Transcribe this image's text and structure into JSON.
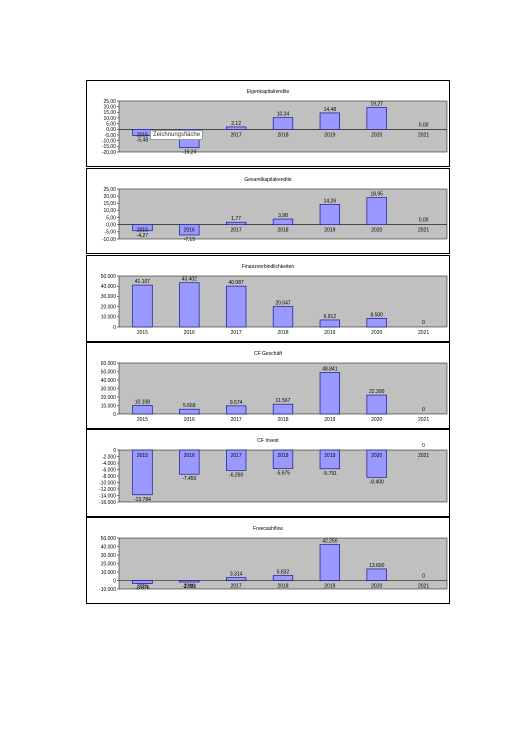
{
  "tooltip": {
    "text": "Zeichnungsfläche"
  },
  "colors": {
    "plot_bg": "#c0c0c0",
    "bar_fill": "#9999ff",
    "bar_stroke": "#000080"
  },
  "chart_data": [
    {
      "type": "bar",
      "title": "Eigenkapitalrendite",
      "categories": [
        "2015",
        "2016",
        "2017",
        "2018",
        "2019",
        "2020",
        "2021"
      ],
      "values": [
        -5.48,
        -16.24,
        2.12,
        10.34,
        14.48,
        19.27,
        0.0
      ],
      "value_labels": [
        "-5,48",
        "-16,24",
        "2,12",
        "10,34",
        "14,48",
        "19,27",
        "0,00"
      ],
      "ylim": [
        -20,
        25
      ],
      "yticks": [
        25,
        20,
        15,
        10,
        5,
        0,
        -5,
        -10,
        -15,
        -20
      ],
      "ytick_labels": [
        "25,00",
        "20,00",
        "15,00",
        "10,00",
        "5,00",
        "0,00",
        "-5,00",
        "-10,00",
        "-15,00",
        "-20,00"
      ],
      "grid": false
    },
    {
      "type": "bar",
      "title": "Gesamtkapitalrendite",
      "categories": [
        "2015",
        "2016",
        "2017",
        "2018",
        "2019",
        "2020",
        "2021"
      ],
      "values": [
        -4.27,
        -7.19,
        1.77,
        3.98,
        14.26,
        18.95,
        0.0
      ],
      "value_labels": [
        "-4,27",
        "-7,19",
        "1,77",
        "3,98",
        "14,26",
        "18,95",
        "0,00"
      ],
      "ylim": [
        -10,
        25
      ],
      "yticks": [
        25,
        20,
        15,
        10,
        5,
        0,
        -5,
        -10
      ],
      "ytick_labels": [
        "25,00",
        "20,00",
        "15,00",
        "10,00",
        "5,00",
        "0,00",
        "-5,00",
        "-10,00"
      ],
      "grid": false
    },
    {
      "type": "bar",
      "title": "Finanzverbindlichkeiten",
      "categories": [
        "2015",
        "2016",
        "2017",
        "2018",
        "2019",
        "2020",
        "2021"
      ],
      "values": [
        41107,
        43402,
        40087,
        20047,
        6912,
        8500,
        0
      ],
      "value_labels": [
        "41.107",
        "43.402",
        "40.087",
        "20.047",
        "6.912",
        "8.500",
        "0"
      ],
      "ylim": [
        0,
        50000
      ],
      "yticks": [
        50000,
        40000,
        30000,
        20000,
        10000,
        0
      ],
      "ytick_labels": [
        "50.000",
        "40.000",
        "30.000",
        "20.000",
        "10.000",
        "0"
      ],
      "grid": false
    },
    {
      "type": "bar",
      "title": "CF Geschäft",
      "categories": [
        "2015",
        "2016",
        "2017",
        "2018",
        "2019",
        "2020",
        "2021"
      ],
      "values": [
        10108,
        5669,
        9574,
        11567,
        48841,
        22300,
        0
      ],
      "value_labels": [
        "10.108",
        "5.669",
        "9.574",
        "11.567",
        "48.841",
        "22.300",
        "0"
      ],
      "ylim": [
        0,
        60000
      ],
      "yticks": [
        60000,
        50000,
        40000,
        30000,
        20000,
        10000,
        0
      ],
      "ytick_labels": [
        "60.000",
        "50.000",
        "40.000",
        "30.000",
        "20.000",
        "10.000",
        "0"
      ],
      "grid": false
    },
    {
      "type": "bar",
      "title": "CF Invest",
      "categories": [
        "2015",
        "2016",
        "2017",
        "2018",
        "2019",
        "2020",
        "2021"
      ],
      "values": [
        -13784,
        -7450,
        -6260,
        -5675,
        -5791,
        -8400,
        0
      ],
      "value_labels": [
        "-13.784",
        "-7.450",
        "-6.260",
        "-5.675",
        "-5.791",
        "-8.400",
        "0"
      ],
      "ylim": [
        -16000,
        0
      ],
      "yticks": [
        0,
        -2000,
        -4000,
        -6000,
        -8000,
        -10000,
        -12000,
        -14000,
        -16000
      ],
      "ytick_labels": [
        "0",
        "-2.000",
        "-4.000",
        "-6.000",
        "-8.000",
        "-10.000",
        "-12.000",
        "-14.000",
        "-16.000"
      ],
      "grid": false
    },
    {
      "type": "bar",
      "title": "Freecashflow",
      "categories": [
        "2015",
        "2016",
        "2017",
        "2018",
        "2019",
        "2020",
        "2021"
      ],
      "values": [
        -3676,
        -1781,
        3314,
        5832,
        42250,
        13600,
        0
      ],
      "value_labels": [
        "-3.676",
        "-1.781",
        "3.314",
        "5.832",
        "42.250",
        "13.600",
        "0"
      ],
      "ylim": [
        -10000,
        50000
      ],
      "yticks": [
        50000,
        40000,
        30000,
        20000,
        10000,
        0,
        -10000
      ],
      "ytick_labels": [
        "50.000",
        "40.000",
        "30.000",
        "20.000",
        "10.000",
        "0",
        "-10.000"
      ],
      "grid": false
    }
  ]
}
